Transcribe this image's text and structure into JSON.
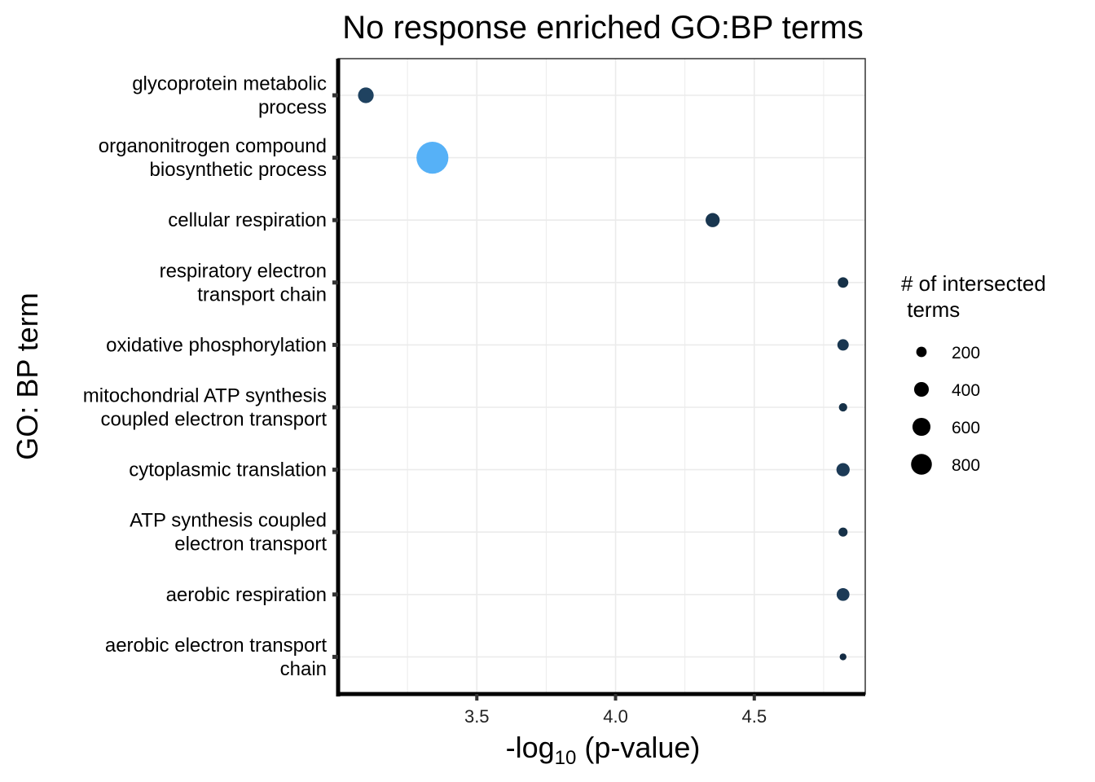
{
  "chart_data": {
    "type": "scatter",
    "title": "No response enriched GO:BP terms",
    "xlabel_prefix": "-log",
    "xlabel_sub": "10",
    "xlabel_suffix": " (p-value)",
    "ylabel": "GO: BP term",
    "xlim": [
      3.0,
      4.9
    ],
    "xticks": [
      3.5,
      4.0,
      4.5
    ],
    "xtick_labels": [
      "3.5",
      "4.0",
      "4.5"
    ],
    "grid": true,
    "legend": {
      "title_line1": "# of intersected",
      "title_line2": " terms",
      "placement": "right",
      "sizes": [
        200,
        400,
        600,
        800
      ],
      "labels": [
        "200",
        "400",
        "600",
        "800"
      ]
    },
    "color_scale": {
      "low": "#132B43",
      "high": "#56B1F7"
    },
    "categories": [
      [
        "glycoprotein metabolic",
        "process"
      ],
      [
        "organonitrogen compound",
        "biosynthetic process"
      ],
      [
        "cellular respiration"
      ],
      [
        "respiratory electron",
        "transport chain"
      ],
      [
        "oxidative phosphorylation"
      ],
      [
        "mitochondrial ATP synthesis",
        "coupled electron transport"
      ],
      [
        "cytoplasmic translation"
      ],
      [
        "ATP synthesis coupled",
        "electron transport"
      ],
      [
        "aerobic respiration"
      ],
      [
        "aerobic electron transport",
        "chain"
      ]
    ],
    "points": [
      {
        "x": 3.1,
        "size": 210,
        "color": "#1f4260"
      },
      {
        "x": 3.34,
        "size": 870,
        "color": "#56B1F7"
      },
      {
        "x": 4.35,
        "size": 170,
        "color": "#193650"
      },
      {
        "x": 4.82,
        "size": 95,
        "color": "#163148"
      },
      {
        "x": 4.82,
        "size": 110,
        "color": "#193650"
      },
      {
        "x": 4.82,
        "size": 60,
        "color": "#163148"
      },
      {
        "x": 4.82,
        "size": 150,
        "color": "#1c3a56"
      },
      {
        "x": 4.82,
        "size": 70,
        "color": "#163148"
      },
      {
        "x": 4.82,
        "size": 140,
        "color": "#1c3a56"
      },
      {
        "x": 4.82,
        "size": 40,
        "color": "#132B43"
      }
    ]
  }
}
